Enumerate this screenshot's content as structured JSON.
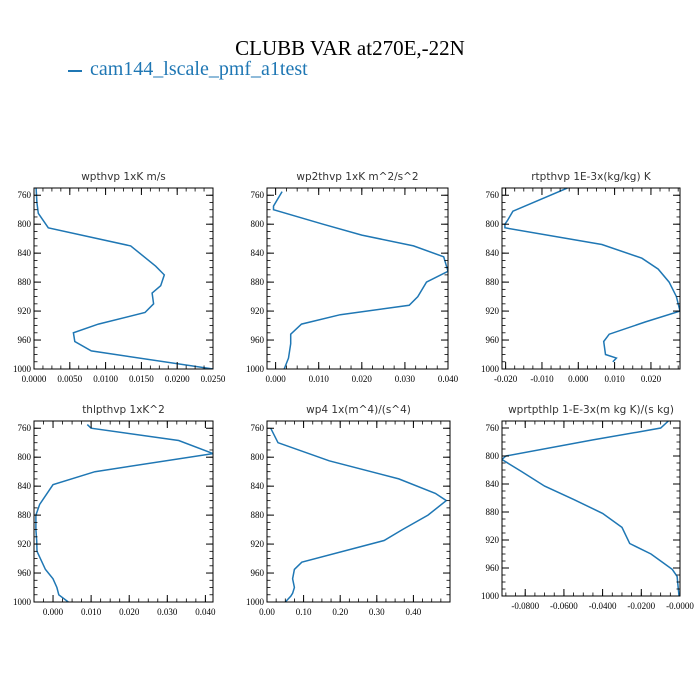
{
  "figure": {
    "title": "CLUBB VAR at270E,-22N",
    "legend": {
      "label": "cam144_lscale_pmf_a1test",
      "color": "#1f77b4"
    }
  },
  "chart_data": [
    {
      "type": "line",
      "title": "wpthvp  1xK m/s",
      "xlim": [
        0,
        0.025
      ],
      "ylim": [
        1000,
        750
      ],
      "xticks": [
        0,
        0.005,
        0.01,
        0.015,
        0.02,
        0.025
      ],
      "xtick_labels": [
        "0.0000",
        "0.0050",
        "0.0100",
        "0.0150",
        "0.0200",
        "0.0250"
      ],
      "yticks": [
        760,
        800,
        840,
        880,
        920,
        960,
        1000
      ],
      "ytick_labels": [
        "760",
        "800",
        "840",
        "880",
        "920",
        "960",
        "1000"
      ],
      "x": [
        0.0003,
        0.0004,
        0.0006,
        0.002,
        0.0135,
        0.017,
        0.0182,
        0.0177,
        0.0165,
        0.0167,
        0.0155,
        0.009,
        0.0055,
        0.0057,
        0.008,
        0.025
      ],
      "y": [
        750,
        770,
        785,
        805,
        830,
        858,
        870,
        885,
        895,
        910,
        922,
        938,
        950,
        962,
        975,
        1000
      ]
    },
    {
      "type": "line",
      "title": "wp2thvp  1xK m^2/s^2",
      "xlim": [
        -0.002,
        0.04
      ],
      "ylim": [
        1000,
        750
      ],
      "xticks": [
        0,
        0.01,
        0.02,
        0.03,
        0.04
      ],
      "xtick_labels": [
        "0.000",
        "0.010",
        "0.020",
        "0.030",
        "0.040"
      ],
      "yticks": [
        760,
        800,
        840,
        880,
        920,
        960,
        1000
      ],
      "ytick_labels": [
        "760",
        "800",
        "840",
        "880",
        "920",
        "960",
        "1000"
      ],
      "x": [
        0.0015,
        -0.0005,
        -0.0005,
        0.011,
        0.02,
        0.032,
        0.039,
        0.04,
        0.035,
        0.033,
        0.031,
        0.015,
        0.006,
        0.0035,
        0.0035,
        0.003,
        0.002
      ],
      "y": [
        755,
        775,
        780,
        800,
        815,
        830,
        845,
        865,
        880,
        900,
        912,
        925,
        938,
        952,
        965,
        985,
        1000
      ]
    },
    {
      "type": "line",
      "title": "rtpthvp  1E-3x(kg/kg) K",
      "xlim": [
        -0.021,
        0.028
      ],
      "ylim": [
        1000,
        750
      ],
      "xticks": [
        -0.02,
        -0.01,
        0,
        0.01,
        0.02
      ],
      "xtick_labels": [
        "-0.020",
        "-0.010",
        "0.000",
        "0.010",
        "0.020"
      ],
      "yticks": [
        760,
        800,
        840,
        880,
        920,
        960,
        1000
      ],
      "ytick_labels": [
        "760",
        "800",
        "840",
        "880",
        "920",
        "960",
        "1000"
      ],
      "x": [
        -0.003,
        -0.018,
        -0.0195,
        -0.0202,
        -0.0202,
        0.0065,
        0.0175,
        0.022,
        0.025,
        0.027,
        0.028,
        0.0185,
        0.0085,
        0.007,
        0.0075,
        0.0105,
        0.0095
      ],
      "y": [
        750,
        782,
        795,
        800,
        805,
        828,
        847,
        862,
        880,
        900,
        920,
        935,
        952,
        962,
        980,
        985,
        990
      ]
    },
    {
      "type": "line",
      "title": "thlpthvp  1xK^2",
      "xlim": [
        -0.005,
        0.042
      ],
      "ylim": [
        1000,
        750
      ],
      "xticks": [
        0,
        0.01,
        0.02,
        0.03,
        0.04
      ],
      "xtick_labels": [
        "0.000",
        "0.010",
        "0.020",
        "0.030",
        "0.040"
      ],
      "yticks": [
        760,
        800,
        840,
        880,
        920,
        960,
        1000
      ],
      "ytick_labels": [
        "760",
        "800",
        "840",
        "880",
        "920",
        "960",
        "1000"
      ],
      "x": [
        0.009,
        0.01,
        0.033,
        0.042,
        0.011,
        0.0,
        -0.0035,
        -0.0045,
        -0.0045,
        -0.0043,
        -0.0042,
        -0.002,
        0.0,
        0.001,
        0.0015,
        0.004
      ],
      "y": [
        755,
        760,
        777,
        795,
        820,
        838,
        865,
        880,
        900,
        915,
        930,
        955,
        968,
        980,
        990,
        1000
      ]
    },
    {
      "type": "line",
      "title": "wp4  1x(m^4)/(s^4)",
      "xlim": [
        0,
        0.5
      ],
      "ylim": [
        1000,
        750
      ],
      "xticks": [
        0,
        0.1,
        0.2,
        0.3,
        0.4
      ],
      "xtick_labels": [
        "0.00",
        "0.10",
        "0.20",
        "0.30",
        "0.40"
      ],
      "yticks": [
        760,
        800,
        840,
        880,
        920,
        960,
        1000
      ],
      "ytick_labels": [
        "760",
        "800",
        "840",
        "880",
        "920",
        "960",
        "1000"
      ],
      "x": [
        0.01,
        0.03,
        0.17,
        0.36,
        0.46,
        0.49,
        0.44,
        0.37,
        0.32,
        0.095,
        0.075,
        0.07,
        0.075,
        0.07,
        0.065,
        0.05
      ],
      "y": [
        760,
        780,
        805,
        830,
        850,
        860,
        880,
        900,
        915,
        945,
        955,
        968,
        980,
        988,
        992,
        1000
      ]
    },
    {
      "type": "line",
      "title": "wprtpthlp  1-E-3x(m kg K)/(s kg)",
      "xlim": [
        -0.092,
        0
      ],
      "ylim": [
        1000,
        750
      ],
      "xticks": [
        -0.08,
        -0.06,
        -0.04,
        -0.02,
        0
      ],
      "xtick_labels": [
        "-0.0800",
        "-0.0600",
        "-0.0400",
        "-0.0200",
        "-0.0000"
      ],
      "yticks": [
        760,
        800,
        840,
        880,
        920,
        960,
        1000
      ],
      "ytick_labels": [
        "760",
        "800",
        "840",
        "880",
        "920",
        "960",
        "1000"
      ],
      "x": [
        -0.006,
        -0.01,
        -0.02,
        -0.045,
        -0.09,
        -0.092,
        -0.082,
        -0.07,
        -0.055,
        -0.04,
        -0.03,
        -0.026,
        -0.015,
        -0.009,
        -0.004,
        -0.0015,
        -0.0005
      ],
      "y": [
        750,
        760,
        765,
        777,
        800,
        805,
        822,
        843,
        862,
        882,
        902,
        925,
        940,
        952,
        962,
        972,
        1000
      ]
    }
  ]
}
